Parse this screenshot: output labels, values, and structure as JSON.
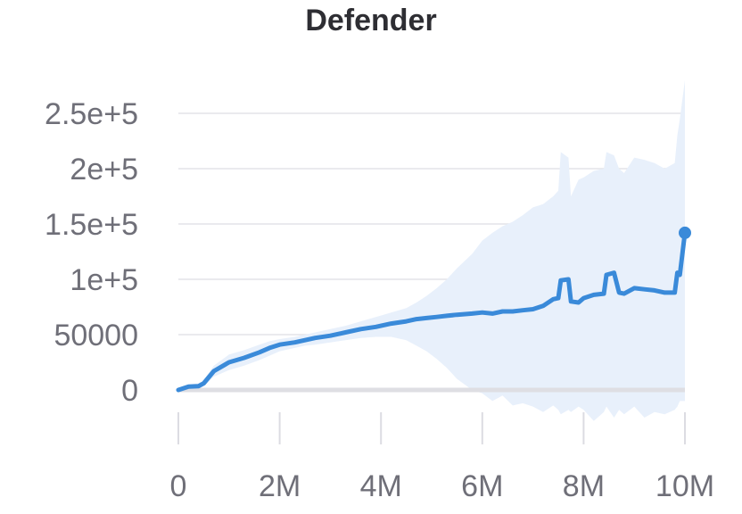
{
  "chart_data": {
    "type": "line",
    "title": "Defender",
    "xlabel": "",
    "ylabel": "",
    "xlim": [
      0,
      10000000
    ],
    "ylim": [
      -50000,
      280000
    ],
    "y_ticks": [
      {
        "value": 0,
        "label": "0"
      },
      {
        "value": 50000,
        "label": "50000"
      },
      {
        "value": 100000,
        "label": "1e+5"
      },
      {
        "value": 150000,
        "label": "1.5e+5"
      },
      {
        "value": 200000,
        "label": "2e+5"
      },
      {
        "value": 250000,
        "label": "2.5e+5"
      }
    ],
    "x_ticks": [
      {
        "value": 0,
        "label": "0"
      },
      {
        "value": 2000000,
        "label": "2M"
      },
      {
        "value": 4000000,
        "label": "4M"
      },
      {
        "value": 6000000,
        "label": "6M"
      },
      {
        "value": 8000000,
        "label": "8M"
      },
      {
        "value": 10000000,
        "label": "10M"
      }
    ],
    "grid": true,
    "series": [
      {
        "color": "#3a8ad9",
        "band_color": "#e8f0fb",
        "x": [
          0,
          200000,
          400000,
          500000,
          700000,
          1000000,
          1300000,
          1600000,
          1800000,
          2000000,
          2300000,
          2500000,
          2700000,
          3000000,
          3300000,
          3600000,
          3900000,
          4200000,
          4500000,
          4700000,
          4900000,
          5100000,
          5300000,
          5500000,
          5800000,
          6000000,
          6200000,
          6400000,
          6600000,
          6800000,
          7000000,
          7200000,
          7400000,
          7500000,
          7550000,
          7700000,
          7750000,
          7900000,
          8000000,
          8200000,
          8400000,
          8450000,
          8600000,
          8700000,
          8800000,
          9000000,
          9200000,
          9400000,
          9600000,
          9800000,
          9850000,
          9900000,
          10000000
        ],
        "y": [
          0,
          3000,
          3500,
          6000,
          17000,
          25000,
          29000,
          34000,
          38000,
          41000,
          43000,
          45000,
          47000,
          49000,
          52000,
          55000,
          57000,
          60000,
          62000,
          64000,
          65000,
          66000,
          67000,
          68000,
          69000,
          70000,
          69000,
          71000,
          71000,
          72000,
          73000,
          76000,
          82000,
          83000,
          99000,
          100000,
          80000,
          79000,
          83000,
          86000,
          87000,
          104000,
          106000,
          88000,
          87000,
          92000,
          91000,
          90000,
          88000,
          88000,
          106000,
          104000,
          142000
        ],
        "upper": [
          0,
          5000,
          6000,
          9000,
          22000,
          32000,
          36000,
          41000,
          44000,
          46000,
          48000,
          50000,
          52000,
          55000,
          58000,
          62000,
          66000,
          70000,
          74000,
          79000,
          85000,
          92000,
          100000,
          110000,
          123000,
          135000,
          142000,
          148000,
          152000,
          158000,
          165000,
          168000,
          175000,
          180000,
          215000,
          210000,
          175000,
          190000,
          192000,
          198000,
          200000,
          215000,
          212000,
          200000,
          196000,
          210000,
          208000,
          205000,
          200000,
          205000,
          230000,
          245000,
          280000
        ],
        "lower": [
          0,
          1000,
          1500,
          3500,
          12000,
          18000,
          22000,
          27000,
          31000,
          35000,
          38000,
          40000,
          41000,
          43000,
          45000,
          47000,
          48000,
          48000,
          45000,
          40000,
          35000,
          28000,
          20000,
          10000,
          0,
          -3000,
          -10000,
          -5000,
          -14000,
          -12000,
          -15000,
          -20000,
          -14000,
          -18000,
          -22000,
          -18000,
          -20000,
          -15000,
          -18000,
          -28000,
          -20000,
          -15000,
          -25000,
          -18000,
          -22000,
          -15000,
          -25000,
          -20000,
          -22000,
          -18000,
          -15000,
          -10000,
          -10000
        ]
      }
    ]
  }
}
